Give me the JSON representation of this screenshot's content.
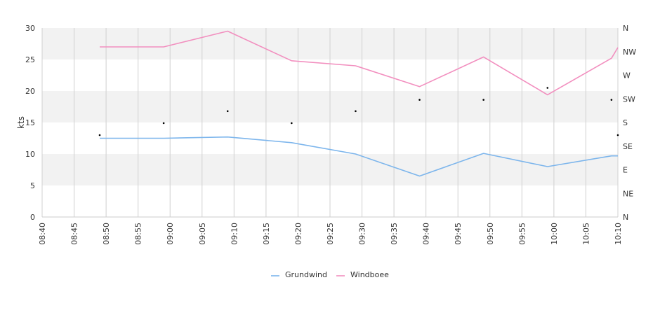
{
  "chart_data": {
    "type": "line",
    "ylabel": "kts",
    "ylim": [
      0,
      30
    ],
    "yticks": [
      "0",
      "5",
      "10",
      "15",
      "20",
      "25",
      "30"
    ],
    "right_axis_labels": [
      "N",
      "NE",
      "E",
      "SE",
      "S",
      "SW",
      "W",
      "NW",
      "N"
    ],
    "x_range": [
      "08:40",
      "10:10"
    ],
    "xticks": [
      "08:40",
      "08:45",
      "08:50",
      "08:55",
      "09:00",
      "09:05",
      "09:10",
      "09:15",
      "09:20",
      "09:25",
      "09:30",
      "09:35",
      "09:40",
      "09:45",
      "09:50",
      "09:55",
      "10:00",
      "10:05",
      "10:10"
    ],
    "series": [
      {
        "name": "Grundwind",
        "color": "#7cb5ec",
        "x": [
          "08:49",
          "08:59",
          "09:09",
          "09:19",
          "09:29",
          "09:39",
          "09:49",
          "09:59",
          "10:09",
          "10:10"
        ],
        "values": [
          12.5,
          12.5,
          12.7,
          11.8,
          10.0,
          6.5,
          10.1,
          8.0,
          9.7,
          9.7
        ]
      },
      {
        "name": "Windboee",
        "color": "#f28fbf",
        "x": [
          "08:49",
          "08:59",
          "09:09",
          "09:19",
          "09:29",
          "09:39",
          "09:49",
          "09:59",
          "10:09",
          "10:10"
        ],
        "values": [
          27.0,
          27.0,
          29.5,
          24.8,
          24.0,
          20.7,
          25.4,
          19.4,
          25.2,
          26.9
        ]
      }
    ],
    "direction_markers": {
      "x": [
        "08:49",
        "08:59",
        "09:09",
        "09:19",
        "09:29",
        "09:39",
        "09:49",
        "09:59",
        "10:09",
        "10:10"
      ],
      "values": [
        13.0,
        14.9,
        16.8,
        14.9,
        16.8,
        18.6,
        18.6,
        20.5,
        18.6,
        13.0
      ]
    },
    "grid": true,
    "legend": "bottom-center"
  }
}
